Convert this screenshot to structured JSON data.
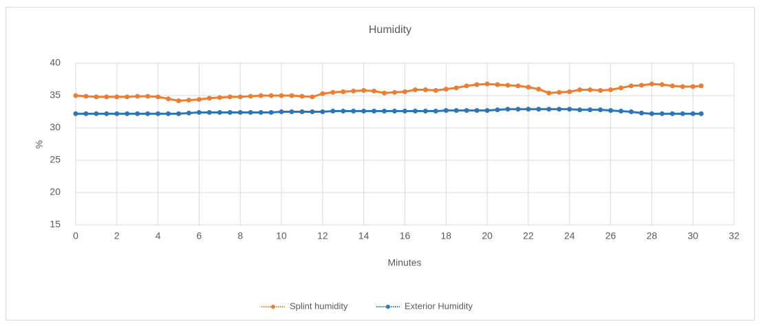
{
  "chart_data": {
    "type": "line",
    "title": "Humidity",
    "xlabel": "Minutes",
    "ylabel": "%",
    "x": [
      0,
      0.5,
      1,
      1.5,
      2,
      2.5,
      3,
      3.5,
      4,
      4.5,
      5,
      5.5,
      6,
      6.5,
      7,
      7.5,
      8,
      8.5,
      9,
      9.5,
      10,
      10.5,
      11,
      11.5,
      12,
      12.5,
      13,
      13.5,
      14,
      14.5,
      15,
      15.5,
      16,
      16.5,
      17,
      17.5,
      18,
      18.5,
      19,
      19.5,
      20,
      20.5,
      21,
      21.5,
      22,
      22.5,
      23,
      23.5,
      24,
      24.5,
      25,
      25.5,
      26,
      26.5,
      27,
      27.5,
      28,
      28.5,
      29,
      29.5,
      30,
      30.4
    ],
    "series": [
      {
        "name": "Splint humidity",
        "color": "#ed7d31",
        "values": [
          35,
          34.9,
          34.8,
          34.8,
          34.8,
          34.8,
          34.9,
          34.9,
          34.8,
          34.5,
          34.2,
          34.3,
          34.4,
          34.6,
          34.7,
          34.8,
          34.8,
          34.9,
          35,
          35,
          35,
          35,
          34.9,
          34.8,
          35.3,
          35.5,
          35.6,
          35.7,
          35.8,
          35.7,
          35.4,
          35.5,
          35.6,
          35.9,
          35.9,
          35.8,
          36,
          36.2,
          36.5,
          36.7,
          36.8,
          36.7,
          36.6,
          36.5,
          36.3,
          36,
          35.4,
          35.5,
          35.6,
          35.9,
          35.9,
          35.8,
          35.9,
          36.2,
          36.5,
          36.6,
          36.8,
          36.7,
          36.5,
          36.4,
          36.4,
          36.5
        ]
      },
      {
        "name": "Exterior Humidity",
        "color": "#2e75b6",
        "values": [
          32.2,
          32.2,
          32.2,
          32.2,
          32.2,
          32.2,
          32.2,
          32.2,
          32.2,
          32.2,
          32.2,
          32.3,
          32.4,
          32.4,
          32.4,
          32.4,
          32.4,
          32.4,
          32.4,
          32.4,
          32.5,
          32.5,
          32.5,
          32.5,
          32.5,
          32.6,
          32.6,
          32.6,
          32.6,
          32.6,
          32.6,
          32.6,
          32.6,
          32.6,
          32.6,
          32.6,
          32.7,
          32.7,
          32.7,
          32.7,
          32.7,
          32.8,
          32.9,
          32.9,
          32.9,
          32.9,
          32.9,
          32.9,
          32.9,
          32.8,
          32.8,
          32.8,
          32.7,
          32.6,
          32.5,
          32.3,
          32.2,
          32.2,
          32.2,
          32.2,
          32.2,
          32.2
        ]
      }
    ],
    "xlim": [
      0,
      32
    ],
    "xticks": [
      0,
      2,
      4,
      6,
      8,
      10,
      12,
      14,
      16,
      18,
      20,
      22,
      24,
      26,
      28,
      30,
      32
    ],
    "ylim": [
      15,
      40
    ],
    "yticks": [
      15,
      20,
      25,
      30,
      35,
      40
    ],
    "grid": true
  }
}
